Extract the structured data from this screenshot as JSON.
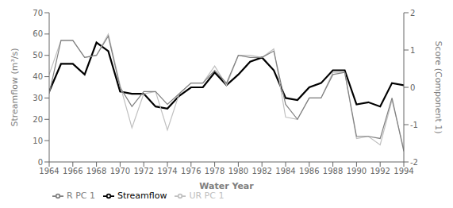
{
  "chart_data": {
    "type": "line",
    "x_label": "Water Year",
    "y_label": "Streamflow (m³/s)",
    "y2_label": "Score (Component 1)",
    "x": [
      1964,
      1965,
      1966,
      1967,
      1968,
      1969,
      1970,
      1971,
      1972,
      1973,
      1974,
      1975,
      1976,
      1977,
      1978,
      1979,
      1980,
      1981,
      1982,
      1983,
      1984,
      1985,
      1986,
      1987,
      1988,
      1989,
      1990,
      1991,
      1992,
      1993,
      1994
    ],
    "series": [
      {
        "name": "Streamflow",
        "color": "#000000",
        "values": [
          33,
          46,
          46,
          41,
          56,
          52,
          33,
          32,
          32,
          26,
          25,
          31,
          35,
          35,
          42,
          36,
          41,
          47,
          49,
          43,
          30,
          29,
          35,
          37,
          43,
          43,
          27,
          28,
          26,
          37,
          36
        ]
      },
      {
        "name": "UR PC 1",
        "color": "#c0c0c0",
        "values": [
          41,
          57,
          57,
          49,
          50,
          60,
          36,
          16,
          32,
          33,
          15,
          32,
          37,
          37,
          45,
          36,
          50,
          50,
          49,
          53,
          21,
          20,
          30,
          30,
          42,
          42,
          11,
          12,
          8,
          29,
          6
        ]
      },
      {
        "name": "R PC 1",
        "color": "#808080",
        "values": [
          32,
          57,
          57,
          49,
          50,
          59,
          35,
          26,
          33,
          33,
          27,
          32,
          37,
          37,
          43,
          37,
          50,
          49,
          49,
          52,
          27,
          20,
          30,
          30,
          41,
          42,
          12,
          12,
          11,
          30,
          5
        ]
      }
    ],
    "xlim": [
      1964,
      1994
    ],
    "xticks": [
      1964,
      1966,
      1968,
      1970,
      1972,
      1974,
      1976,
      1978,
      1980,
      1982,
      1984,
      1986,
      1988,
      1990,
      1992,
      1994
    ],
    "ylim": [
      0,
      70
    ],
    "yticks": [
      0,
      10,
      20,
      30,
      40,
      50,
      60,
      70
    ],
    "y2lim": [
      -2,
      2
    ],
    "y2ticks": [
      -2,
      -1,
      0,
      1,
      2
    ],
    "legend": "lower left",
    "grid": false
  }
}
